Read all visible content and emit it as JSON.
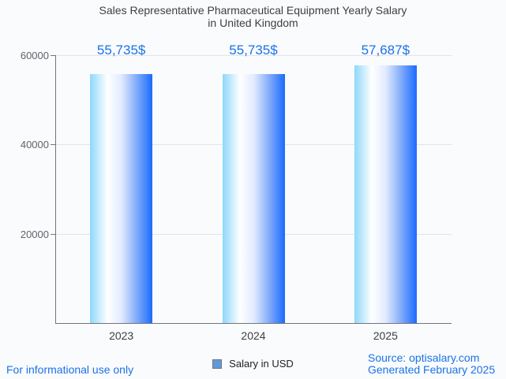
{
  "page": {
    "background": "#fafbfd"
  },
  "title": {
    "line1": "Sales Representative Pharmaceutical Equipment Yearly Salary",
    "line2": "in United Kingdom"
  },
  "chart_data": {
    "type": "bar",
    "title": "Sales Representative Pharmaceutical Equipment Yearly Salary in United Kingdom",
    "categories": [
      "2023",
      "2024",
      "2025"
    ],
    "values": [
      55735,
      55735,
      57687
    ],
    "value_labels": [
      "55,735$",
      "55,735$",
      "57,687$"
    ],
    "series_name": "Salary in USD",
    "xlabel": "",
    "ylabel": "",
    "ylim": [
      0,
      60000
    ],
    "yticks": [
      20000,
      40000,
      60000
    ],
    "ytick_labels": [
      "20000",
      "40000",
      "60000"
    ],
    "grid": true,
    "legend_position": "bottom-center",
    "colors": {
      "value_label": "#1a73e8",
      "bar_gradient_left": "#8ed7fc",
      "bar_gradient_mid": "#ffffff",
      "bar_gradient_right": "#1a6bfe",
      "axis": "#757575",
      "gridline": "#e2e4e8",
      "ytick_label": "#5f6368",
      "xtick_label": "#3c4043"
    }
  },
  "legend": {
    "label": "Salary in USD",
    "swatch_color": "#5f9bdc"
  },
  "footer": {
    "disclaimer": "For informational use only",
    "source_line1": "Source: optisalary.com",
    "source_line2": "Generated February 2025",
    "link_color": "#1a73e8"
  }
}
